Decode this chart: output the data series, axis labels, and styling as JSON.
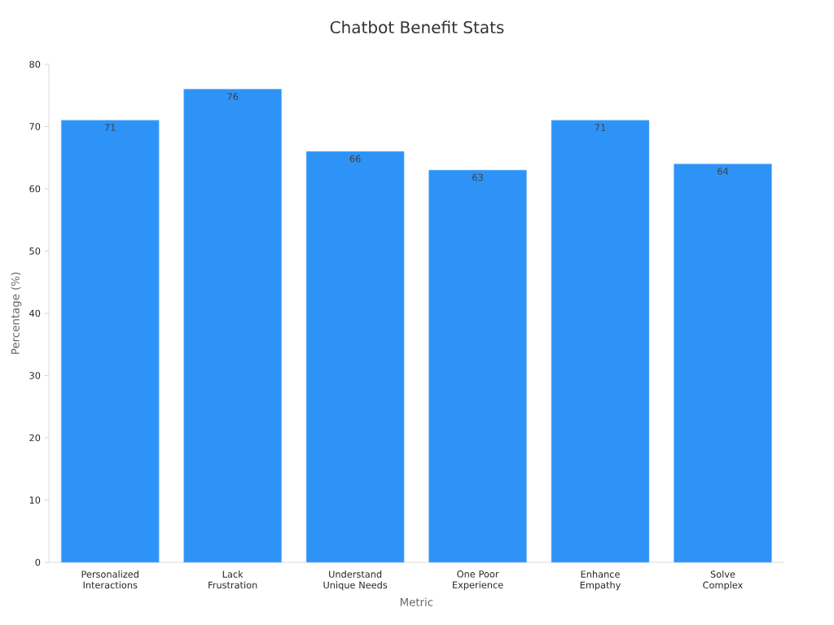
{
  "chart_data": {
    "type": "bar",
    "title": "Chatbot Benefit Stats",
    "xlabel": "Metric",
    "ylabel": "Percentage (%)",
    "categories": [
      "Personalized Interactions",
      "Lack Frustration",
      "Understand Unique Needs",
      "One Poor Experience",
      "Enhance Empathy",
      "Solve Complex"
    ],
    "values": [
      71,
      76,
      66,
      63,
      71,
      64
    ],
    "color": "#2e93f7",
    "ylim": [
      0,
      80
    ],
    "yticks": [
      0,
      10,
      20,
      30,
      40,
      50,
      60,
      70,
      80
    ],
    "data_labels": true,
    "grid": false
  }
}
